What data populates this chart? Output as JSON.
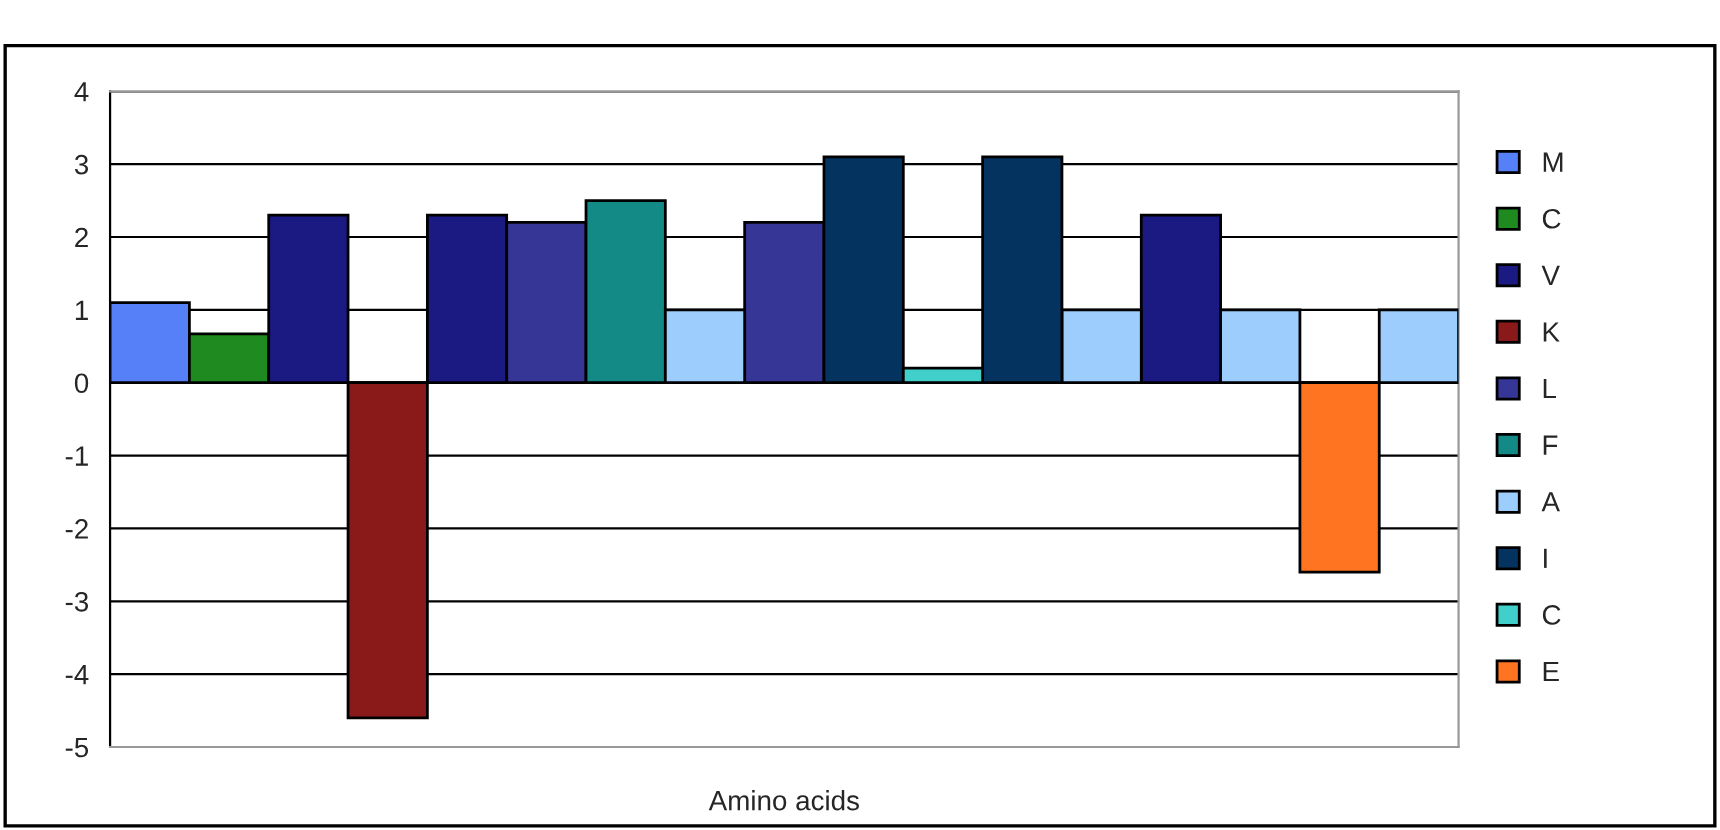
{
  "chart_data": {
    "type": "bar",
    "xlabel": "Amino acids",
    "categories": [
      null,
      null,
      null,
      null,
      null,
      null,
      null,
      null,
      null,
      null,
      null,
      null,
      null,
      null,
      null,
      null,
      null
    ],
    "series": [
      {
        "name": "M",
        "color": "#5580f8",
        "values": [
          1.1,
          null,
          null,
          null,
          null,
          null,
          null,
          null,
          null,
          null,
          null,
          null,
          null,
          null,
          null,
          null,
          null
        ]
      },
      {
        "name": "C",
        "color": "#1f8a1f",
        "values": [
          null,
          0.67,
          null,
          null,
          null,
          null,
          null,
          null,
          null,
          null,
          null,
          null,
          null,
          null,
          null,
          null,
          null
        ]
      },
      {
        "name": "V",
        "color": "#1a1a82",
        "values": [
          null,
          null,
          2.3,
          null,
          2.3,
          null,
          null,
          null,
          null,
          null,
          null,
          null,
          null,
          2.3,
          null,
          null,
          null
        ]
      },
      {
        "name": "K",
        "color": "#8a1a1a",
        "values": [
          null,
          null,
          null,
          -4.6,
          null,
          null,
          null,
          null,
          null,
          null,
          null,
          null,
          null,
          null,
          null,
          null,
          null
        ]
      },
      {
        "name": "L",
        "color": "#363696",
        "values": [
          null,
          null,
          null,
          null,
          null,
          2.2,
          null,
          null,
          2.2,
          null,
          null,
          null,
          null,
          null,
          null,
          null,
          null
        ]
      },
      {
        "name": "F",
        "color": "#138a86",
        "values": [
          null,
          null,
          null,
          null,
          null,
          null,
          2.5,
          null,
          null,
          null,
          null,
          null,
          null,
          null,
          null,
          null,
          null
        ]
      },
      {
        "name": "A",
        "color": "#9dcdfd",
        "values": [
          null,
          null,
          null,
          null,
          null,
          null,
          null,
          1.0,
          null,
          null,
          null,
          null,
          1.0,
          null,
          1.0,
          null,
          1.0
        ]
      },
      {
        "name": "I",
        "color": "#04335f",
        "values": [
          null,
          null,
          null,
          null,
          null,
          null,
          null,
          null,
          null,
          3.1,
          null,
          3.1,
          null,
          null,
          null,
          null,
          null
        ]
      },
      {
        "name": "C",
        "color": "#40cfcb",
        "values": [
          null,
          null,
          null,
          null,
          null,
          null,
          null,
          null,
          null,
          null,
          0.2,
          null,
          null,
          null,
          null,
          null,
          null
        ]
      },
      {
        "name": "E",
        "color": "#ff7420",
        "values": [
          null,
          null,
          null,
          null,
          null,
          null,
          null,
          null,
          null,
          null,
          null,
          null,
          null,
          null,
          null,
          -2.6,
          null
        ]
      }
    ],
    "ylim": [
      -5,
      4
    ],
    "yticks": [
      -5,
      -4,
      -3,
      -2,
      -1,
      0,
      1,
      2,
      3,
      4
    ],
    "grid": "y",
    "legend": "right"
  }
}
